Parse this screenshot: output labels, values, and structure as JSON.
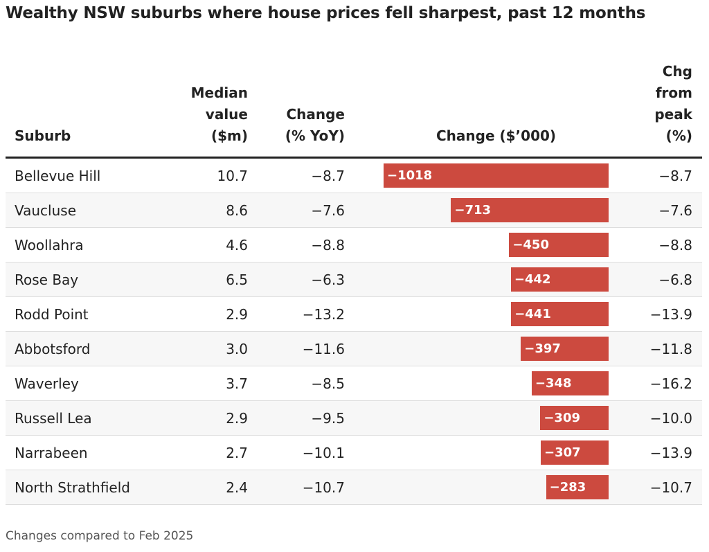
{
  "chart_data": {
    "type": "table",
    "title": "Wealthy NSW suburbs where house prices fell sharpest, past 12 months",
    "columns": {
      "suburb": "Suburb",
      "median": "Median value ($m)",
      "yoy": "Change (% YoY)",
      "change": "Change ($’000)",
      "peak": "Chg from peak (%)"
    },
    "header_lines": {
      "suburb": [
        "Suburb"
      ],
      "median": [
        "Median",
        "value",
        "($m)"
      ],
      "yoy": [
        "Change",
        "(% YoY)"
      ],
      "change": [
        "Change ($’000)"
      ],
      "peak": [
        "Chg",
        "from",
        "peak",
        "(%)"
      ]
    },
    "bar_color": "#cc4a3f",
    "bar_domain_min": -1018,
    "rows": [
      {
        "suburb": "Bellevue Hill",
        "median": "10.7",
        "yoy": "−8.7",
        "change": -1018,
        "change_label": "−1018",
        "peak": "−8.7"
      },
      {
        "suburb": "Vaucluse",
        "median": "8.6",
        "yoy": "−7.6",
        "change": -713,
        "change_label": "−713",
        "peak": "−7.6"
      },
      {
        "suburb": "Woollahra",
        "median": "4.6",
        "yoy": "−8.8",
        "change": -450,
        "change_label": "−450",
        "peak": "−8.8"
      },
      {
        "suburb": "Rose Bay",
        "median": "6.5",
        "yoy": "−6.3",
        "change": -442,
        "change_label": "−442",
        "peak": "−6.8"
      },
      {
        "suburb": "Rodd Point",
        "median": "2.9",
        "yoy": "−13.2",
        "change": -441,
        "change_label": "−441",
        "peak": "−13.9"
      },
      {
        "suburb": "Abbotsford",
        "median": "3.0",
        "yoy": "−11.6",
        "change": -397,
        "change_label": "−397",
        "peak": "−11.8"
      },
      {
        "suburb": "Waverley",
        "median": "3.7",
        "yoy": "−8.5",
        "change": -348,
        "change_label": "−348",
        "peak": "−16.2"
      },
      {
        "suburb": "Russell Lea",
        "median": "2.9",
        "yoy": "−9.5",
        "change": -309,
        "change_label": "−309",
        "peak": "−10.0"
      },
      {
        "suburb": "Narrabeen",
        "median": "2.7",
        "yoy": "−10.1",
        "change": -307,
        "change_label": "−307",
        "peak": "−13.9"
      },
      {
        "suburb": "North Strathfield",
        "median": "2.4",
        "yoy": "−10.7",
        "change": -283,
        "change_label": "−283",
        "peak": "−10.7"
      }
    ],
    "footnote": "Changes compared to Feb 2025"
  }
}
